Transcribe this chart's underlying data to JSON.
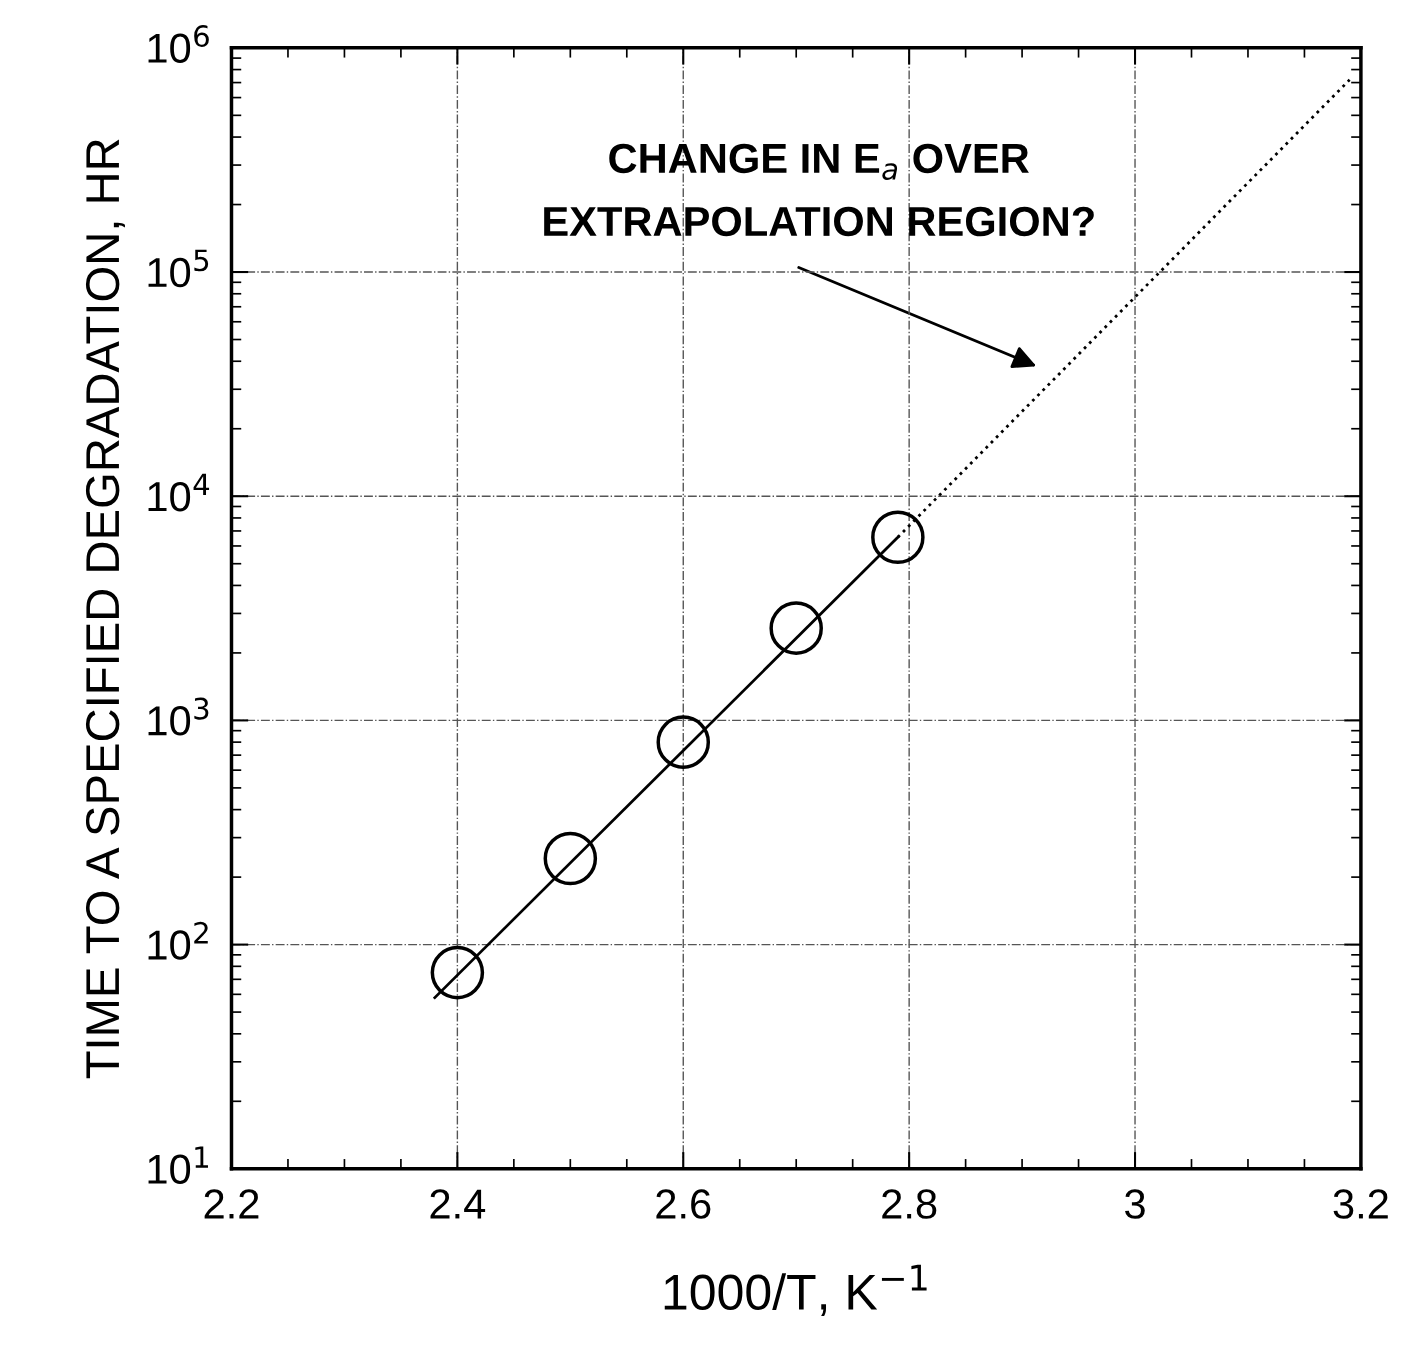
{
  "chart_data": {
    "type": "scatter",
    "xlabel": "1000/T, K$^{−1}$",
    "ylabel": "TIME TO A SPECIFIED DEGRADATION, HR",
    "series": [
      {
        "color": "#000000",
        "marker": "circle",
        "x": [
          2.4,
          2.5,
          2.6,
          2.7,
          2.79
        ],
        "values": [
          75,
          242,
          800,
          2580,
          6560
        ]
      },
      {
        "type": "line",
        "color": "#000000",
        "marker": "none",
        "line_style": "solid",
        "x": [
          2.38,
          2.79
        ],
        "values": [
          58,
          6560
        ]
      },
      {
        "type": "line",
        "color": "#000000",
        "marker": "none",
        "line_style": "dotted",
        "x": [
          2.79,
          3.19
        ],
        "values": [
          6560,
          720000
        ]
      }
    ],
    "annotations": [
      "CHANGE IN E$_{a}$ OVER\nEXTRAPOLATION REGION?"
    ],
    "log": "y",
    "grid": true,
    "xlim": [
      2.2,
      3.2
    ],
    "xticks": [
      2.2,
      2.4,
      2.6,
      2.8,
      3,
      3.2
    ],
    "ylim": [
      10,
      1000000
    ],
    "yticks": [
      {
        "value": 10,
        "label": "10$^{1}$"
      },
      {
        "value": 100,
        "label": "10$^{2}$"
      },
      {
        "value": 1000,
        "label": "10$^{3}$"
      },
      {
        "value": 10000,
        "label": "10$^{4}$"
      },
      {
        "value": 100000,
        "label": "10$^{5}$"
      },
      {
        "value": 1000000,
        "label": "10$^{6}$"
      }
    ]
  }
}
